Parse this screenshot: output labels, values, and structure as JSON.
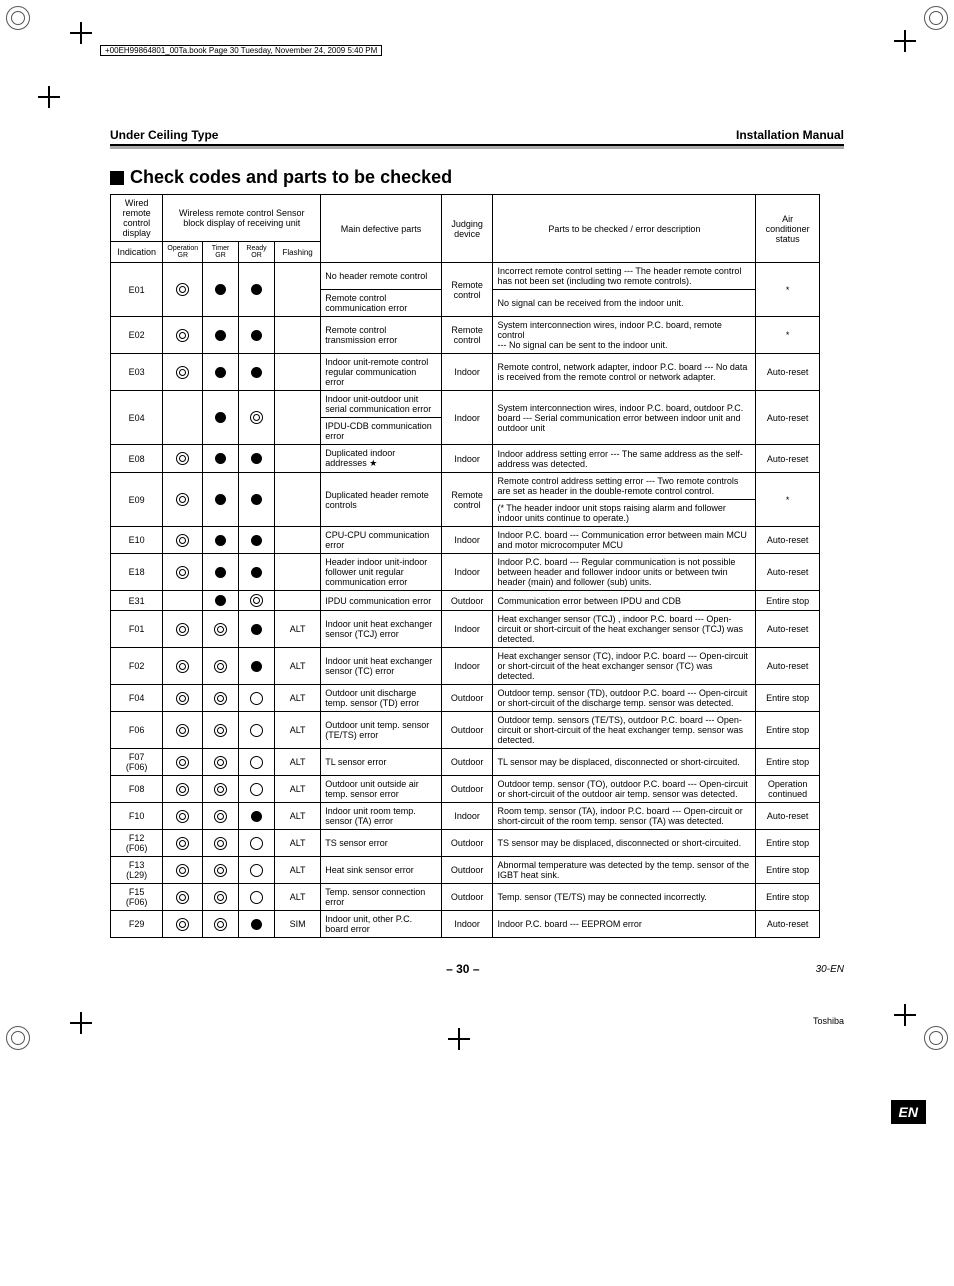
{
  "bookline": "+00EH99864801_00Ta.book  Page 30  Tuesday, November 24, 2009  5:40 PM",
  "header": {
    "left": "Under Ceiling Type",
    "right": "Installation Manual"
  },
  "section_title": "Check codes and parts to be checked",
  "thead": {
    "wired": "Wired remote control display",
    "wireless": "Wireless remote control Sensor block display of receiving unit",
    "main_def": "Main defective parts",
    "judging": "Judging device",
    "desc": "Parts to be checked / error description",
    "status": "Air conditioner status",
    "indication": "Indication",
    "op_gr": "Operation GR",
    "timer_gr": "Timer GR",
    "ready_or": "Ready OR",
    "flashing": "Flashing"
  },
  "rows": [
    {
      "code": "E01",
      "led": [
        "dbl",
        "dot",
        "dot"
      ],
      "flash": "",
      "def": [
        "No header remote control",
        "Remote control communication error"
      ],
      "judge": "Remote control",
      "desc": [
        "Incorrect remote control setting --- The header remote control has not been set (including two remote controls).",
        "No signal can be received from the indoor unit."
      ],
      "status": "*"
    },
    {
      "code": "E02",
      "led": [
        "dbl",
        "dot",
        "dot"
      ],
      "flash": "",
      "def": [
        "Remote control transmission error"
      ],
      "judge": "Remote control",
      "desc": [
        "System interconnection wires, indoor P.C. board, remote control\n--- No signal can be sent to the indoor unit."
      ],
      "status": "*"
    },
    {
      "code": "E03",
      "led": [
        "dbl",
        "dot",
        "dot"
      ],
      "flash": "",
      "def": [
        "Indoor unit-remote control regular communication error"
      ],
      "judge": "Indoor",
      "desc": [
        "Remote control, network adapter, indoor P.C. board --- No data is received from the remote control or network adapter."
      ],
      "status": "Auto-reset"
    },
    {
      "code": "E04",
      "led": [
        "",
        "dot",
        "dbl"
      ],
      "flash": "",
      "def": [
        "Indoor unit-outdoor unit serial communication error",
        "IPDU-CDB communication error"
      ],
      "judge": "Indoor",
      "desc": [
        "System interconnection  wires, indoor P.C. board, outdoor P.C. board --- Serial communication error between indoor unit and outdoor unit"
      ],
      "status": "Auto-reset"
    },
    {
      "code": "E08",
      "led": [
        "dbl",
        "dot",
        "dot"
      ],
      "flash": "",
      "def": [
        "Duplicated indoor addresses ★"
      ],
      "judge": "Indoor",
      "desc": [
        "Indoor address setting error --- The same address as the self-address was detected."
      ],
      "status": "Auto-reset"
    },
    {
      "code": "E09",
      "led": [
        "dbl",
        "dot",
        "dot"
      ],
      "flash": "",
      "def": [
        "Duplicated header remote controls"
      ],
      "judge": "Remote control",
      "desc": [
        "Remote control address setting error --- Two remote controls are set as header in the double-remote control control.",
        "(* The header indoor unit stops raising alarm and follower indoor units continue to operate.)"
      ],
      "status": "*"
    },
    {
      "code": "E10",
      "led": [
        "dbl",
        "dot",
        "dot"
      ],
      "flash": "",
      "def": [
        "CPU-CPU communication error"
      ],
      "judge": "Indoor",
      "desc": [
        "Indoor P.C. board --- Communication error between main MCU and motor microcomputer MCU"
      ],
      "status": "Auto-reset"
    },
    {
      "code": "E18",
      "led": [
        "dbl",
        "dot",
        "dot"
      ],
      "flash": "",
      "def": [
        "Header indoor unit-indoor follower unit regular communication error"
      ],
      "judge": "Indoor",
      "desc": [
        "Indoor P.C. board --- Regular communication is not possible between header and follower indoor units or between twin header (main) and follower (sub) units."
      ],
      "status": "Auto-reset"
    },
    {
      "code": "E31",
      "led": [
        "",
        "dot",
        "dbl"
      ],
      "flash": "",
      "def": [
        "IPDU communication error"
      ],
      "judge": "Outdoor",
      "desc": [
        "Communication error between IPDU and CDB"
      ],
      "status": "Entire stop"
    },
    {
      "code": "F01",
      "led": [
        "dbl",
        "dbl",
        "dot"
      ],
      "flash": "ALT",
      "def": [
        "Indoor unit heat exchanger sensor (TCJ) error"
      ],
      "judge": "Indoor",
      "desc": [
        "Heat exchanger sensor (TCJ) , indoor P.C. board --- Open-circuit or short-circuit of the heat exchanger sensor (TCJ) was detected."
      ],
      "status": "Auto-reset"
    },
    {
      "code": "F02",
      "led": [
        "dbl",
        "dbl",
        "dot"
      ],
      "flash": "ALT",
      "def": [
        "Indoor unit heat exchanger sensor (TC) error"
      ],
      "judge": "Indoor",
      "desc": [
        "Heat exchanger sensor (TC), indoor P.C. board --- Open-circuit or short-circuit of the heat exchanger sensor (TC) was detected."
      ],
      "status": "Auto-reset"
    },
    {
      "code": "F04",
      "led": [
        "dbl",
        "dbl",
        "ring"
      ],
      "flash": "ALT",
      "def": [
        "Outdoor unit discharge temp. sensor  (TD) error"
      ],
      "judge": "Outdoor",
      "desc": [
        "Outdoor temp. sensor (TD), outdoor P.C. board --- Open-circuit or short-circuit of the discharge temp. sensor was detected."
      ],
      "status": "Entire stop"
    },
    {
      "code": "F06",
      "led": [
        "dbl",
        "dbl",
        "ring"
      ],
      "flash": "ALT",
      "def": [
        "Outdoor unit temp. sensor (TE/TS) error"
      ],
      "judge": "Outdoor",
      "desc": [
        "Outdoor temp. sensors (TE/TS), outdoor P.C. board --- Open-circuit or short-circuit of the heat exchanger temp. sensor was detected."
      ],
      "status": "Entire stop"
    },
    {
      "code": "F07\n(F06)",
      "led": [
        "dbl",
        "dbl",
        "ring"
      ],
      "flash": "ALT",
      "def": [
        "TL sensor error"
      ],
      "judge": "Outdoor",
      "desc": [
        "TL sensor may be displaced, disconnected or short-circuited."
      ],
      "status": "Entire stop"
    },
    {
      "code": "F08",
      "led": [
        "dbl",
        "dbl",
        "ring"
      ],
      "flash": "ALT",
      "def": [
        "Outdoor unit outside air temp. sensor error"
      ],
      "judge": "Outdoor",
      "desc": [
        "Outdoor temp. sensor (TO), outdoor P.C. board --- Open-circuit or short-circuit of the outdoor air temp. sensor was detected."
      ],
      "status": "Operation continued"
    },
    {
      "code": "F10",
      "led": [
        "dbl",
        "dbl",
        "dot"
      ],
      "flash": "ALT",
      "def": [
        "Indoor unit room temp. sensor (TA) error"
      ],
      "judge": "Indoor",
      "desc": [
        "Room temp. sensor (TA), indoor P.C. board --- Open-circuit or short-circuit of the room temp. sensor (TA) was detected."
      ],
      "status": "Auto-reset"
    },
    {
      "code": "F12\n(F06)",
      "led": [
        "dbl",
        "dbl",
        "ring"
      ],
      "flash": "ALT",
      "def": [
        "TS sensor error"
      ],
      "judge": "Outdoor",
      "desc": [
        "TS sensor may be displaced, disconnected or short-circuited."
      ],
      "status": "Entire stop"
    },
    {
      "code": "F13\n(L29)",
      "led": [
        "dbl",
        "dbl",
        "ring"
      ],
      "flash": "ALT",
      "def": [
        "Heat sink sensor error"
      ],
      "judge": "Outdoor",
      "desc": [
        "Abnormal temperature was detected by the temp. sensor of the IGBT heat sink."
      ],
      "status": "Entire stop"
    },
    {
      "code": "F15\n(F06)",
      "led": [
        "dbl",
        "dbl",
        "ring"
      ],
      "flash": "ALT",
      "def": [
        "Temp. sensor connection error"
      ],
      "judge": "Outdoor",
      "desc": [
        "Temp. sensor (TE/TS) may be connected incorrectly."
      ],
      "status": "Entire stop"
    },
    {
      "code": "F29",
      "led": [
        "dbl",
        "dbl",
        "dot"
      ],
      "flash": "SIM",
      "def": [
        "Indoor unit, other P.C. board error"
      ],
      "judge": "Indoor",
      "desc": [
        "Indoor P.C. board --- EEPROM error"
      ],
      "status": "Auto-reset"
    }
  ],
  "footer": {
    "page": "– 30 –",
    "code": "30-EN",
    "brand": "Toshiba"
  },
  "lang_tab": "EN"
}
